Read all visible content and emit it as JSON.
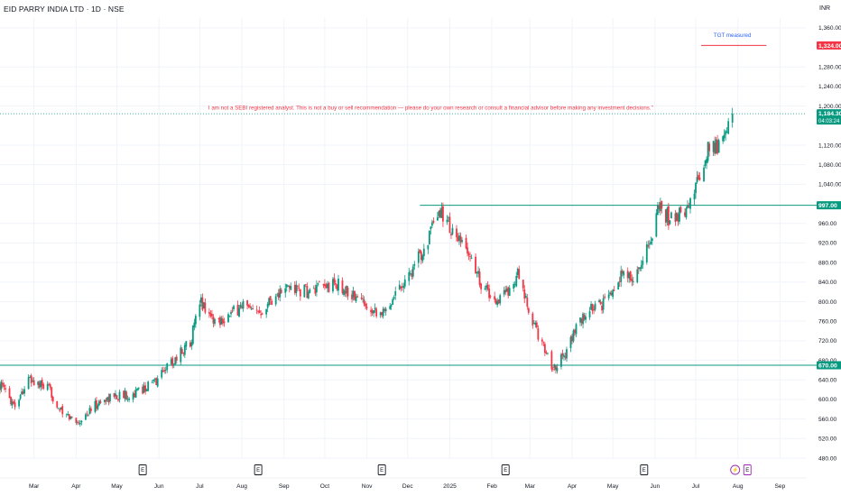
{
  "header": {
    "title": "EID PARRY INDIA LTD · 1D · NSE",
    "currency": "INR"
  },
  "chart_data": {
    "type": "candlestick",
    "title": "EID PARRY INDIA LTD · 1D · NSE",
    "currency": "INR",
    "ylim": [
      480,
      1380
    ],
    "y_ticks": [
      {
        "value": 1360,
        "label": "1,360.00"
      },
      {
        "value": 1280,
        "label": "1,280.00"
      },
      {
        "value": 1240,
        "label": "1,240.00"
      },
      {
        "value": 1200,
        "label": "1,200.00"
      },
      {
        "value": 1120,
        "label": "1,120.00"
      },
      {
        "value": 1080,
        "label": "1,080.00"
      },
      {
        "value": 1040,
        "label": "1,040.00"
      },
      {
        "value": 960,
        "label": "960.00"
      },
      {
        "value": 920,
        "label": "920.00"
      },
      {
        "value": 880,
        "label": "880.00"
      },
      {
        "value": 840,
        "label": "840.00"
      },
      {
        "value": 800,
        "label": "800.00"
      },
      {
        "value": 760,
        "label": "760.00"
      },
      {
        "value": 720,
        "label": "720.00"
      },
      {
        "value": 680,
        "label": "680.00"
      },
      {
        "value": 640,
        "label": "640.00"
      },
      {
        "value": 600,
        "label": "600.00"
      },
      {
        "value": 560,
        "label": "560.00"
      },
      {
        "value": 520,
        "label": "520.00"
      },
      {
        "value": 480,
        "label": "480.00"
      }
    ],
    "x_ticks": [
      "Mar",
      "Apr",
      "May",
      "Jun",
      "Jul",
      "Aug",
      "Sep",
      "Oct",
      "Nov",
      "Dec",
      "2025",
      "Feb",
      "Mar",
      "Apr",
      "May",
      "Jun",
      "Jul",
      "Aug",
      "Sep"
    ],
    "x_tick_dates": [
      "2024-03-01",
      "2024-04-01",
      "2024-05-01",
      "2024-06-01",
      "2024-07-01",
      "2024-08-01",
      "2024-09-01",
      "2024-10-01",
      "2024-11-01",
      "2024-12-01",
      "2025-01-01",
      "2025-02-01",
      "2025-03-01",
      "2025-04-01",
      "2025-05-01",
      "2025-06-01",
      "2025-07-01",
      "2025-08-01",
      "2025-09-01"
    ],
    "x_range": [
      "2024-02-05",
      "2025-09-20"
    ],
    "price_tags": [
      {
        "value": 1324,
        "label": "1,324.00",
        "color": "#f23645"
      },
      {
        "value": 1184.3,
        "label": "1,184.30",
        "sublabel": "04:03:24",
        "color": "#089981"
      },
      {
        "value": 997,
        "label": "997.00",
        "color": "#089981"
      },
      {
        "value": 670,
        "label": "670.00",
        "color": "#089981"
      }
    ],
    "horizontal_lines": [
      {
        "value": 997,
        "start": "2024-12-10",
        "color": "#089981"
      },
      {
        "value": 670,
        "start": "2024-02-05",
        "color": "#089981"
      },
      {
        "value": 1324,
        "start": "2025-07-05",
        "end": "2025-08-22",
        "color": "#f23645"
      }
    ],
    "current_price_line": {
      "value": 1184.3,
      "color": "#089981"
    },
    "annotations": [
      {
        "text": "TGT measured",
        "date": "2025-07-28",
        "value": 1341,
        "color": "#2962ff"
      },
      {
        "text": "I am not a SEBI registered analyst. This is not a buy or sell recommendation — please do your own research or consult a financial advisor before making any investment decisions.\"",
        "date": "2024-12-18",
        "value": 1193,
        "color": "#f23645"
      }
    ],
    "event_markers": [
      {
        "date": "2024-05-20",
        "label": "E",
        "color": "#131722"
      },
      {
        "date": "2024-08-13",
        "label": "E",
        "color": "#131722"
      },
      {
        "date": "2024-11-12",
        "label": "E",
        "color": "#131722"
      },
      {
        "date": "2025-02-11",
        "label": "E",
        "color": "#131722"
      },
      {
        "date": "2025-05-24",
        "label": "E",
        "color": "#131722"
      },
      {
        "date": "2025-07-30",
        "label": "⚡",
        "color": "#9c27b0",
        "round": true
      },
      {
        "date": "2025-08-08",
        "label": "E",
        "color": "#9c27b0"
      }
    ],
    "colors": {
      "up": "#089981",
      "down": "#f23645"
    },
    "anchors": [
      [
        "2024-02-05",
        630
      ],
      [
        "2024-02-16",
        590
      ],
      [
        "2024-02-26",
        640
      ],
      [
        "2024-03-12",
        620
      ],
      [
        "2024-03-22",
        570
      ],
      [
        "2024-04-03",
        555
      ],
      [
        "2024-04-16",
        590
      ],
      [
        "2024-04-26",
        605
      ],
      [
        "2024-05-14",
        612
      ],
      [
        "2024-05-22",
        625
      ],
      [
        "2024-05-31",
        640
      ],
      [
        "2024-06-05",
        665
      ],
      [
        "2024-06-12",
        680
      ],
      [
        "2024-06-24",
        720
      ],
      [
        "2024-07-02",
        800
      ],
      [
        "2024-07-12",
        760
      ],
      [
        "2024-07-25",
        775
      ],
      [
        "2024-08-02",
        795
      ],
      [
        "2024-08-10",
        770
      ],
      [
        "2024-08-22",
        805
      ],
      [
        "2024-09-05",
        830
      ],
      [
        "2024-09-20",
        818
      ],
      [
        "2024-10-01",
        830
      ],
      [
        "2024-10-10",
        835
      ],
      [
        "2024-10-22",
        812
      ],
      [
        "2024-11-02",
        792
      ],
      [
        "2024-11-14",
        775
      ],
      [
        "2024-11-22",
        822
      ],
      [
        "2024-12-06",
        870
      ],
      [
        "2024-12-16",
        930
      ],
      [
        "2024-12-26",
        985
      ],
      [
        "2025-01-06",
        925
      ],
      [
        "2025-01-14",
        905
      ],
      [
        "2025-01-24",
        840
      ],
      [
        "2025-02-03",
        800
      ],
      [
        "2025-02-12",
        820
      ],
      [
        "2025-02-20",
        855
      ],
      [
        "2025-03-01",
        770
      ],
      [
        "2025-03-10",
        715
      ],
      [
        "2025-03-18",
        665
      ],
      [
        "2025-03-26",
        690
      ],
      [
        "2025-04-04",
        745
      ],
      [
        "2025-04-14",
        785
      ],
      [
        "2025-04-25",
        795
      ],
      [
        "2025-05-06",
        855
      ],
      [
        "2025-05-16",
        845
      ],
      [
        "2025-05-26",
        905
      ],
      [
        "2025-06-04",
        990
      ],
      [
        "2025-06-14",
        965
      ],
      [
        "2025-06-24",
        990
      ],
      [
        "2025-07-02",
        1040
      ],
      [
        "2025-07-10",
        1110
      ],
      [
        "2025-07-20",
        1125
      ],
      [
        "2025-07-28",
        1184.3
      ]
    ]
  }
}
